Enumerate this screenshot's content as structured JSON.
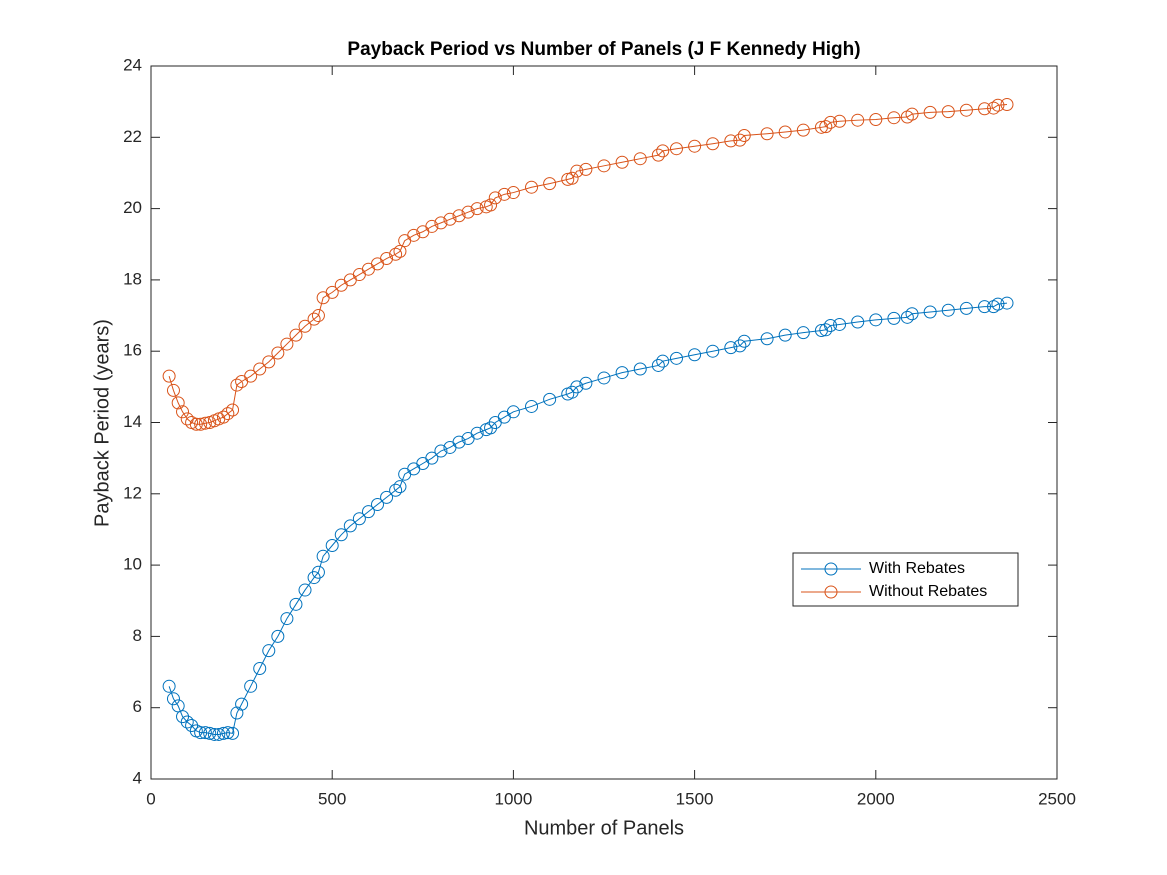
{
  "chart_data": {
    "type": "line",
    "title": "Payback Period vs Number of Panels (J F Kennedy High)",
    "x_label": "Number of Panels",
    "y_label": "Payback Period (years)",
    "x": [
      50,
      62,
      75,
      87,
      100,
      112,
      125,
      137,
      150,
      162,
      175,
      187,
      200,
      212,
      225,
      237,
      250,
      275,
      300,
      325,
      350,
      375,
      400,
      425,
      450,
      462,
      475,
      500,
      525,
      550,
      575,
      600,
      625,
      650,
      675,
      687,
      700,
      725,
      750,
      775,
      800,
      825,
      850,
      875,
      900,
      925,
      937,
      950,
      975,
      1000,
      1050,
      1100,
      1150,
      1162,
      1175,
      1200,
      1250,
      1300,
      1350,
      1400,
      1412,
      1450,
      1500,
      1550,
      1600,
      1625,
      1637,
      1700,
      1750,
      1800,
      1850,
      1862,
      1875,
      1900,
      1950,
      2000,
      2050,
      2087,
      2100,
      2150,
      2200,
      2250,
      2300,
      2325,
      2337,
      2362
    ],
    "series": [
      {
        "name": "With Rebates",
        "color": "#0072BD",
        "values": [
          6.6,
          6.25,
          6.05,
          5.75,
          5.6,
          5.5,
          5.35,
          5.3,
          5.3,
          5.28,
          5.25,
          5.25,
          5.28,
          5.3,
          5.28,
          5.85,
          6.1,
          6.6,
          7.1,
          7.6,
          8.0,
          8.5,
          8.9,
          9.3,
          9.65,
          9.8,
          10.25,
          10.55,
          10.85,
          11.1,
          11.3,
          11.5,
          11.7,
          11.9,
          12.1,
          12.2,
          12.55,
          12.7,
          12.85,
          13.0,
          13.2,
          13.3,
          13.45,
          13.55,
          13.7,
          13.8,
          13.85,
          14.0,
          14.15,
          14.3,
          14.45,
          14.65,
          14.8,
          14.85,
          15.0,
          15.1,
          15.25,
          15.4,
          15.5,
          15.6,
          15.72,
          15.8,
          15.9,
          16.0,
          16.1,
          16.15,
          16.28,
          16.35,
          16.45,
          16.52,
          16.58,
          16.6,
          16.72,
          16.75,
          16.82,
          16.88,
          16.92,
          16.95,
          17.05,
          17.1,
          17.15,
          17.2,
          17.25,
          17.25,
          17.32,
          17.35
        ]
      },
      {
        "name": "Without Rebates",
        "color": "#D95319",
        "values": [
          15.3,
          14.9,
          14.55,
          14.3,
          14.1,
          14.0,
          13.95,
          13.95,
          13.98,
          14.0,
          14.05,
          14.1,
          14.15,
          14.25,
          14.35,
          15.05,
          15.15,
          15.3,
          15.5,
          15.7,
          15.95,
          16.2,
          16.45,
          16.7,
          16.9,
          17.0,
          17.5,
          17.65,
          17.85,
          18.0,
          18.15,
          18.3,
          18.45,
          18.6,
          18.72,
          18.8,
          19.1,
          19.25,
          19.35,
          19.5,
          19.6,
          19.7,
          19.8,
          19.9,
          20.0,
          20.05,
          20.1,
          20.3,
          20.4,
          20.45,
          20.6,
          20.7,
          20.82,
          20.85,
          21.05,
          21.1,
          21.2,
          21.3,
          21.4,
          21.5,
          21.62,
          21.68,
          21.75,
          21.82,
          21.9,
          21.92,
          22.05,
          22.1,
          22.15,
          22.2,
          22.28,
          22.3,
          22.42,
          22.45,
          22.48,
          22.5,
          22.55,
          22.57,
          22.65,
          22.7,
          22.72,
          22.76,
          22.8,
          22.82,
          22.9,
          22.92
        ]
      }
    ],
    "xlim": [
      0,
      2500
    ],
    "xticks": [
      0,
      500,
      1000,
      1500,
      2000,
      2500
    ],
    "ylim": [
      4,
      24
    ],
    "yticks": [
      4,
      6,
      8,
      10,
      12,
      14,
      16,
      18,
      20,
      22,
      24
    ],
    "marker": "circle",
    "legend_position": "right"
  }
}
